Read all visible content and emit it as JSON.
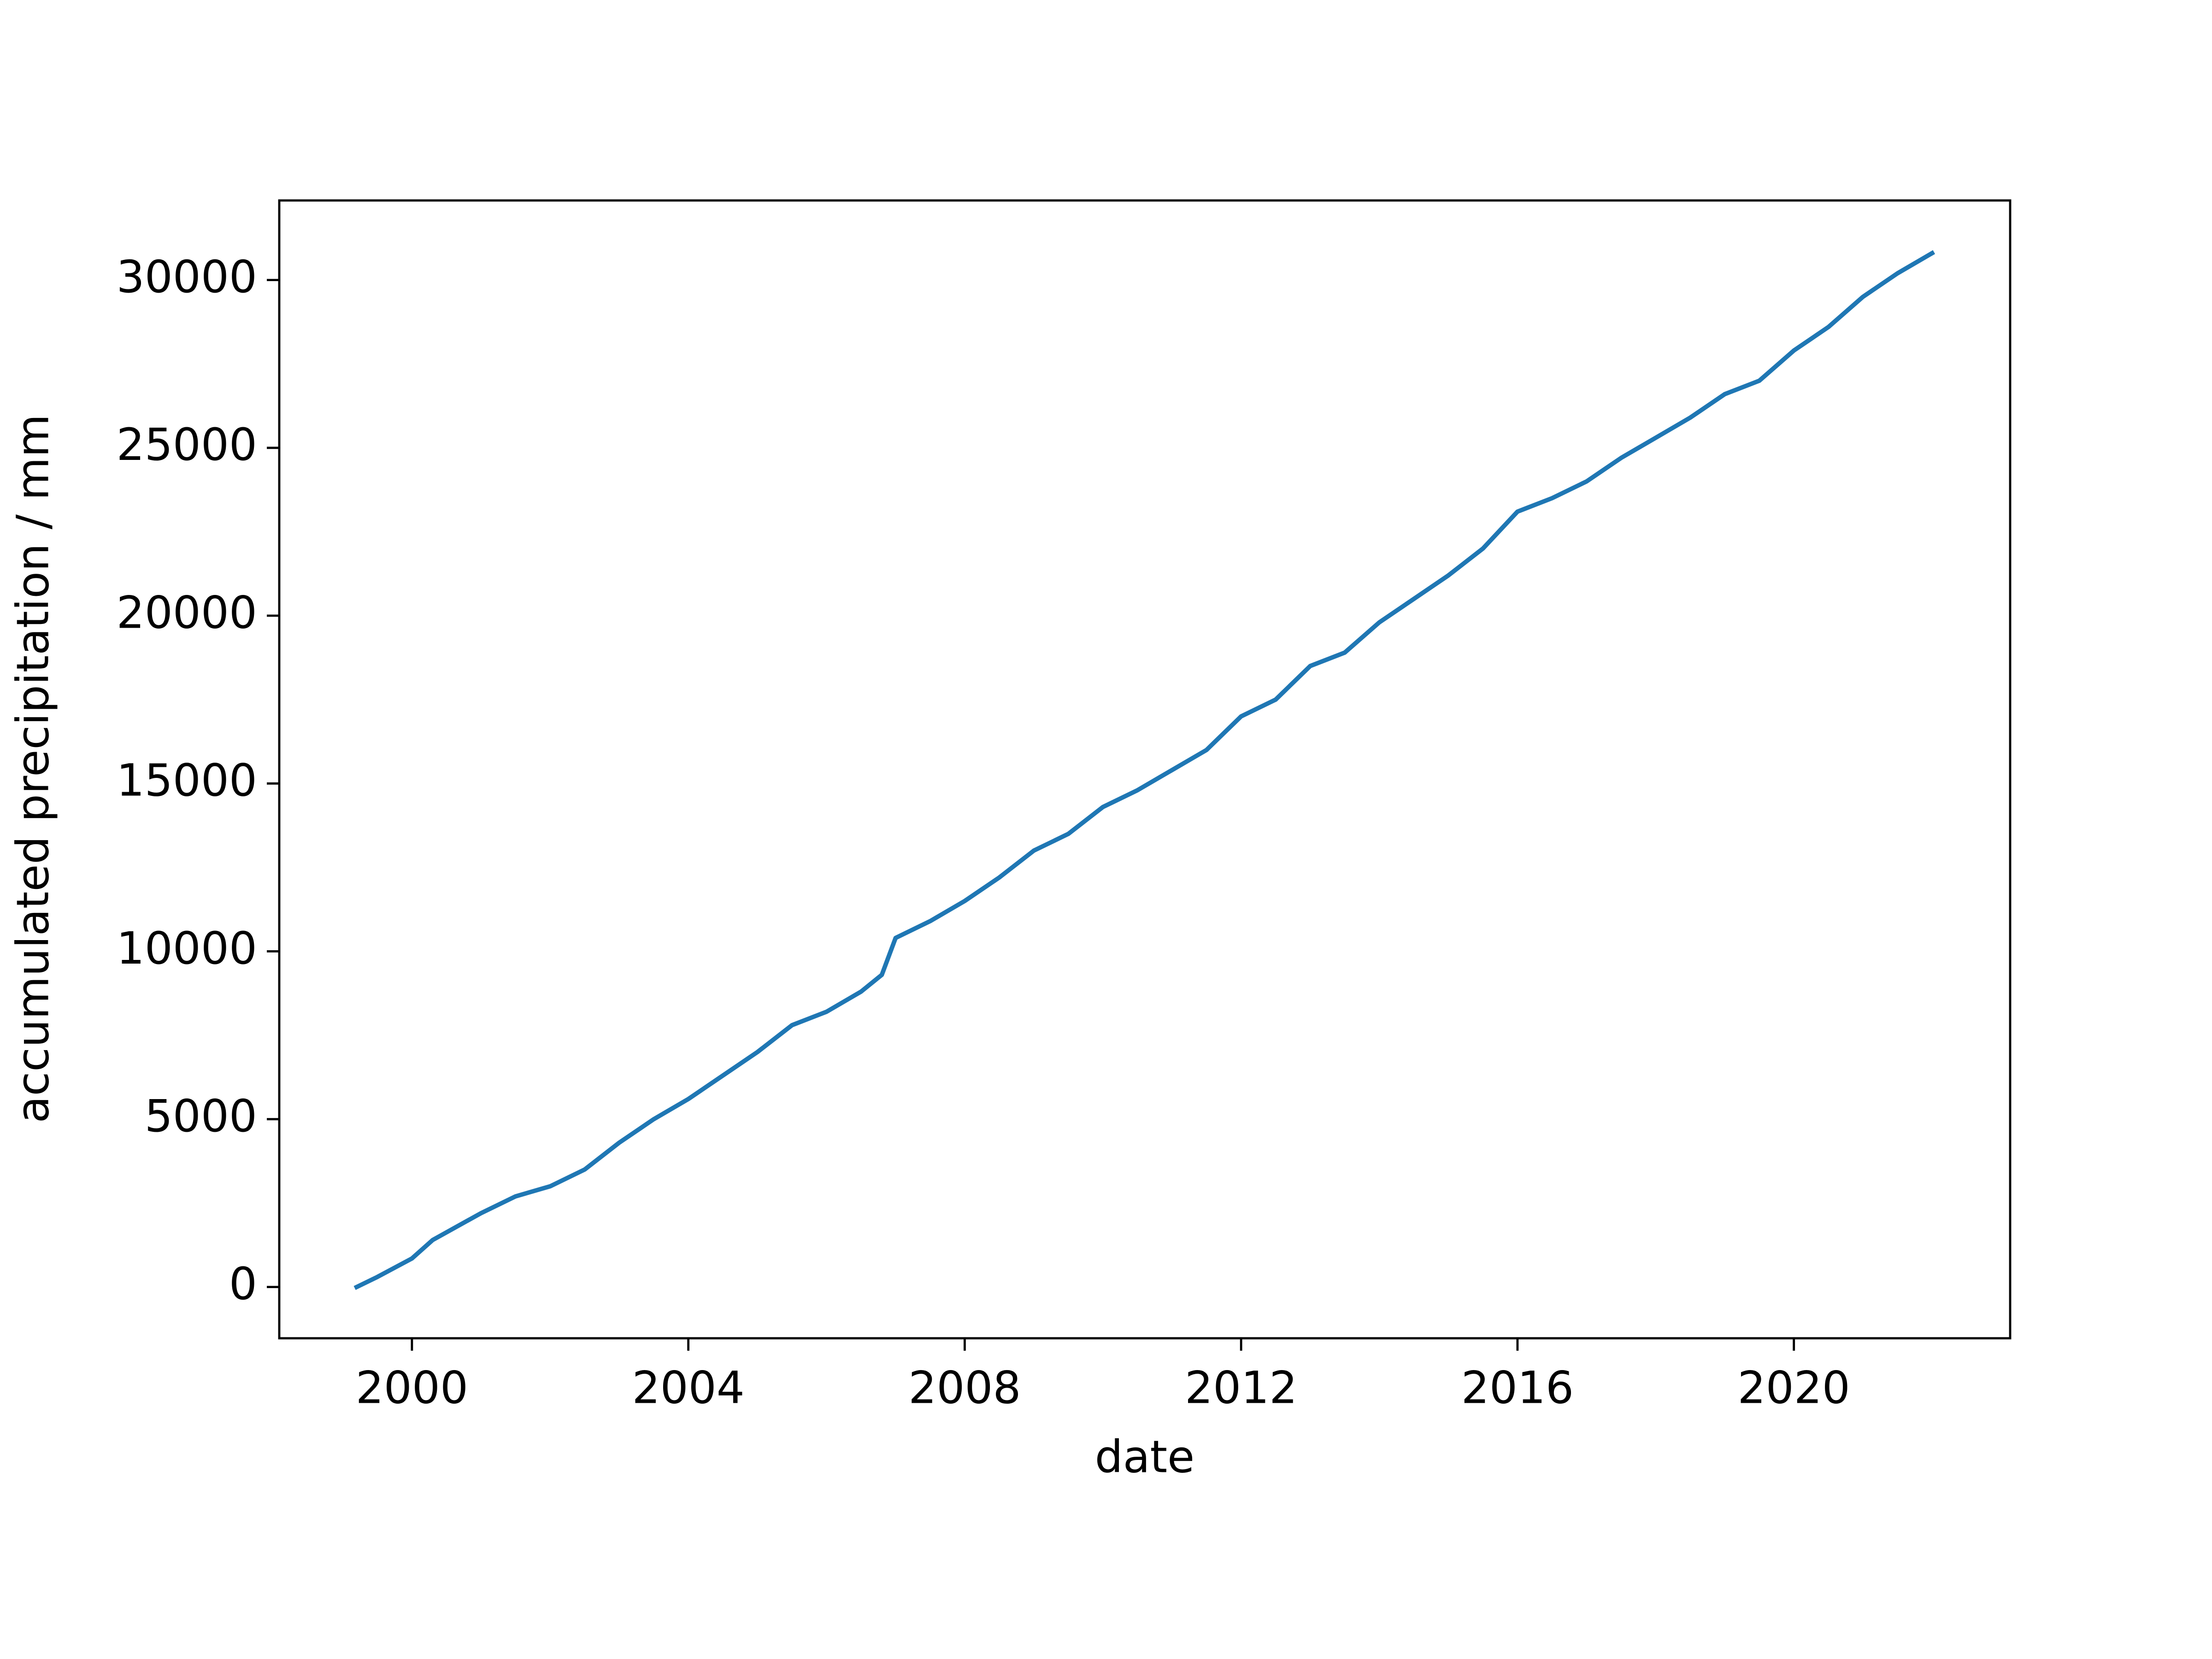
{
  "chart_data": {
    "type": "line",
    "xlabel": "date",
    "ylabel": "accumulated precipitation / mm",
    "x": [
      1999.2,
      1999.5,
      2000.0,
      2000.3,
      2001.0,
      2001.5,
      2002.0,
      2002.5,
      2003.0,
      2003.5,
      2004.0,
      2004.5,
      2005.0,
      2005.5,
      2006.0,
      2006.5,
      2006.8,
      2007.0,
      2007.5,
      2008.0,
      2008.5,
      2009.0,
      2009.5,
      2010.0,
      2010.5,
      2011.0,
      2011.5,
      2012.0,
      2012.5,
      2013.0,
      2013.5,
      2014.0,
      2014.5,
      2015.0,
      2015.5,
      2016.0,
      2016.5,
      2017.0,
      2017.5,
      2018.0,
      2018.5,
      2019.0,
      2019.5,
      2020.0,
      2020.5,
      2021.0,
      2021.5,
      2022.0
    ],
    "series": [
      {
        "name": "accumulated precipitation",
        "color": "#1f77b4",
        "values": [
          0,
          300,
          850,
          1400,
          2200,
          2700,
          3000,
          3500,
          4300,
          5000,
          5600,
          6300,
          7000,
          7800,
          8200,
          8800,
          9300,
          10400,
          10900,
          11500,
          12200,
          13000,
          13500,
          14300,
          14800,
          15400,
          16000,
          17000,
          17500,
          18500,
          18900,
          19800,
          20500,
          21200,
          22000,
          23100,
          23500,
          24000,
          24700,
          25300,
          25900,
          26600,
          27000,
          27900,
          28600,
          29500,
          30200,
          30800
        ]
      }
    ],
    "xlim": [
      1998.08,
      2023.13
    ],
    "xticks": [
      2000,
      2004,
      2008,
      2012,
      2016,
      2020
    ],
    "ylim": [
      -1527,
      32370
    ],
    "yticks": [
      0,
      5000,
      10000,
      15000,
      20000,
      25000,
      30000
    ],
    "grid": false
  }
}
